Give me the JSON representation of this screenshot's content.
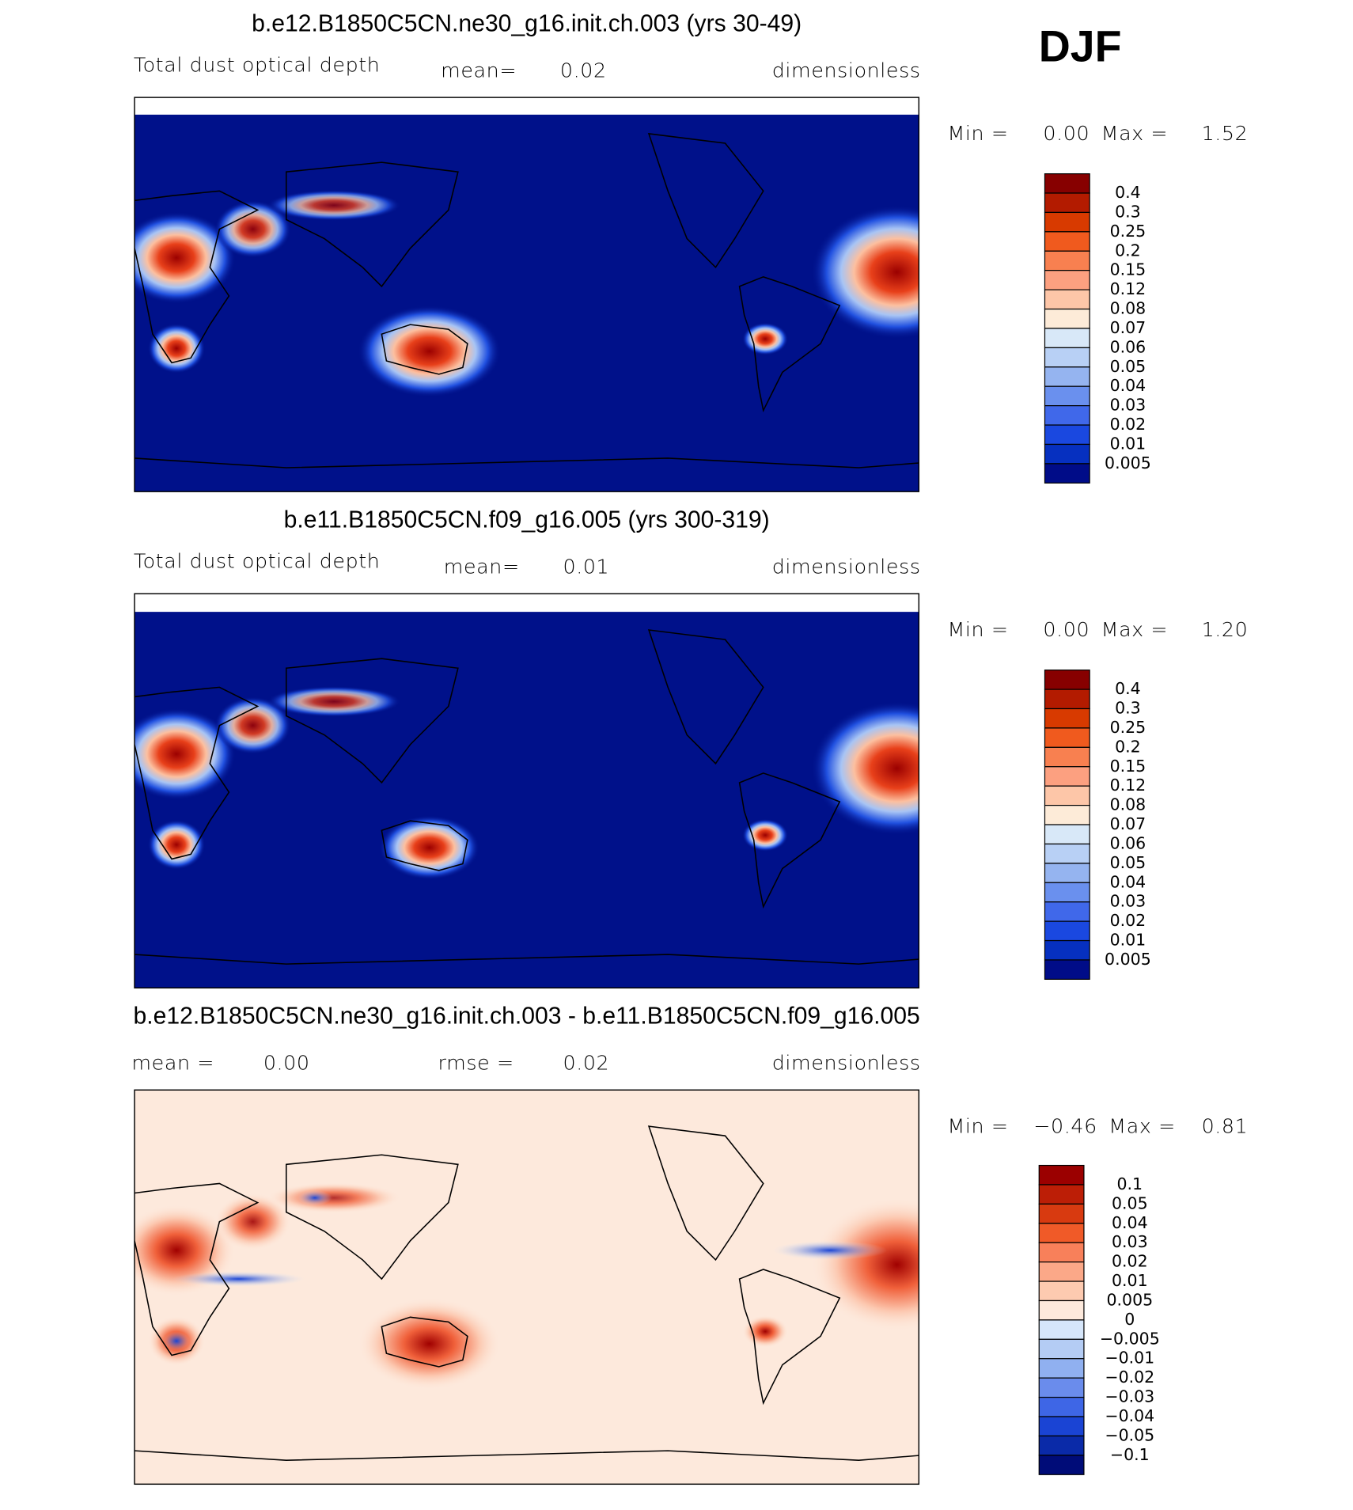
{
  "header": {
    "season": "DJF"
  },
  "panels": [
    {
      "title": "b.e12.B1850C5CN.ne30_g16.init.ch.003 (yrs 30-49)",
      "variable": "Total dust optical depth",
      "mean_label": "mean=",
      "mean_value": "0.02",
      "units": "dimensionless",
      "min_label": "Min =",
      "min_value": "0.00",
      "max_label": "Max =",
      "max_value": "1.52",
      "colorbar": {
        "labels": [
          "0.4",
          "0.3",
          "0.25",
          "0.2",
          "0.15",
          "0.12",
          "0.08",
          "0.07",
          "0.06",
          "0.05",
          "0.04",
          "0.03",
          "0.02",
          "0.01",
          "0.005"
        ],
        "colors": [
          "#870000",
          "#b31b00",
          "#d83a00",
          "#f05a1e",
          "#f88050",
          "#fca080",
          "#fdc6a8",
          "#fdebd8",
          "#d8e8f8",
          "#b8d0f5",
          "#95b4f0",
          "#6a90ee",
          "#4068ea",
          "#1a48e0",
          "#0630c0",
          "#000c88"
        ]
      }
    },
    {
      "title": "b.e11.B1850C5CN.f09_g16.005 (yrs 300-319)",
      "variable": "Total dust optical depth",
      "mean_label": "mean=",
      "mean_value": "0.01",
      "units": "dimensionless",
      "min_label": "Min =",
      "min_value": "0.00",
      "max_label": "Max =",
      "max_value": "1.20",
      "colorbar": {
        "labels": [
          "0.4",
          "0.3",
          "0.25",
          "0.2",
          "0.15",
          "0.12",
          "0.08",
          "0.07",
          "0.06",
          "0.05",
          "0.04",
          "0.03",
          "0.02",
          "0.01",
          "0.005"
        ],
        "colors": [
          "#870000",
          "#b31b00",
          "#d83a00",
          "#f05a1e",
          "#f88050",
          "#fca080",
          "#fdc6a8",
          "#fdebd8",
          "#d8e8f8",
          "#b8d0f5",
          "#95b4f0",
          "#6a90ee",
          "#4068ea",
          "#1a48e0",
          "#0630c0",
          "#000c88"
        ]
      }
    },
    {
      "title": "b.e12.B1850C5CN.ne30_g16.init.ch.003 - b.e11.B1850C5CN.f09_g16.005",
      "mean_label": "mean =",
      "mean_value": "0.00",
      "rmse_label": "rmse =",
      "rmse_value": "0.02",
      "units": "dimensionless",
      "min_label": "Min =",
      "min_value": "−0.46",
      "max_label": "Max =",
      "max_value": "0.81",
      "colorbar": {
        "labels": [
          "0.1",
          "0.05",
          "0.04",
          "0.03",
          "0.02",
          "0.01",
          "0.005",
          "0",
          "−0.005",
          "−0.01",
          "−0.02",
          "−0.03",
          "−0.04",
          "−0.05",
          "−0.1"
        ],
        "colors": [
          "#9b0000",
          "#bc1e06",
          "#d83a10",
          "#f05a28",
          "#f8805a",
          "#fba888",
          "#fdcab0",
          "#fde9dc",
          "#d6e6fa",
          "#b4ccf4",
          "#90b0f0",
          "#6a8cec",
          "#3e66e6",
          "#1a44d4",
          "#0a2aa8",
          "#000c78"
        ]
      }
    }
  ]
}
